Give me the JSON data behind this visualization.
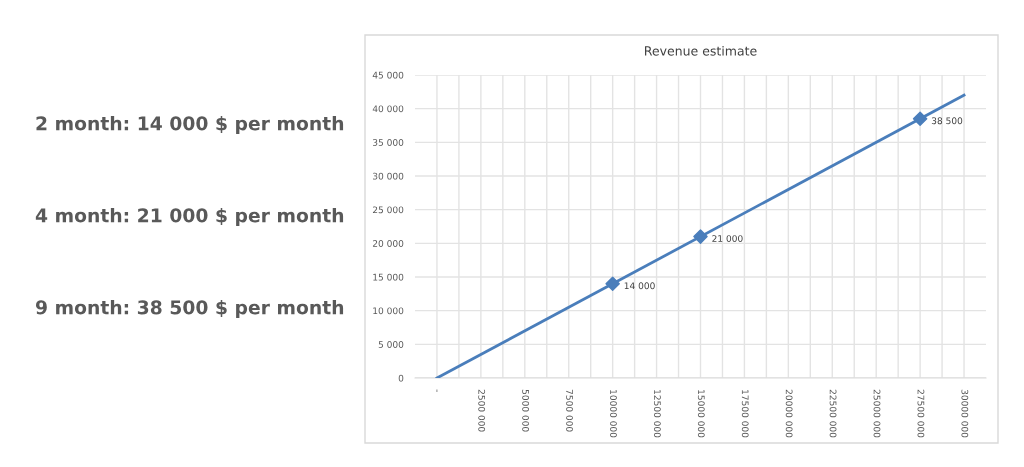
{
  "chart_data": {
    "type": "line",
    "title": "Revenue estimate",
    "annotations": [
      "2 month: 14 000 $ per month",
      "4 month: 21 000 $ per month",
      "9 month: 38 500 $ per month"
    ],
    "series": [
      {
        "color": "#4a7ebb",
        "marker": "none",
        "x": [
          0,
          30000000
        ],
        "values": [
          0,
          42000
        ]
      },
      {
        "type": "scatter",
        "color": "#4a7ebb",
        "marker": "diamond",
        "x": [
          10000000,
          15000000,
          27500000
        ],
        "values": [
          14000,
          21000,
          38500
        ],
        "value_labels": [
          "14 000",
          "21 000",
          "38 500"
        ]
      }
    ],
    "xlim": [
      -1250000,
      31250000
    ],
    "xticks": [
      {
        "value": 0,
        "label": "-"
      },
      {
        "value": 1250000,
        "label": null
      },
      {
        "value": 2500000,
        "label": "2500 000"
      },
      {
        "value": 3750000,
        "label": null
      },
      {
        "value": 5000000,
        "label": "5000 000"
      },
      {
        "value": 6250000,
        "label": null
      },
      {
        "value": 7500000,
        "label": "7500 000"
      },
      {
        "value": 8750000,
        "label": null
      },
      {
        "value": 10000000,
        "label": "10000 000"
      },
      {
        "value": 11250000,
        "label": null
      },
      {
        "value": 12500000,
        "label": "12500 000"
      },
      {
        "value": 13750000,
        "label": null
      },
      {
        "value": 15000000,
        "label": "15000 000"
      },
      {
        "value": 16250000,
        "label": null
      },
      {
        "value": 17500000,
        "label": "17500 000"
      },
      {
        "value": 18750000,
        "label": null
      },
      {
        "value": 20000000,
        "label": "20000 000"
      },
      {
        "value": 21250000,
        "label": null
      },
      {
        "value": 22500000,
        "label": "22500 000"
      },
      {
        "value": 23750000,
        "label": null
      },
      {
        "value": 25000000,
        "label": "25000 000"
      },
      {
        "value": 26250000,
        "label": null
      },
      {
        "value": 27500000,
        "label": "27500 000"
      },
      {
        "value": 28750000,
        "label": null
      },
      {
        "value": 30000000,
        "label": "30000 000"
      }
    ],
    "ylim": [
      0,
      45000
    ],
    "yticks": [
      0,
      {
        "value": 5000,
        "label": "5 000"
      },
      {
        "value": 10000,
        "label": "10 000"
      },
      {
        "value": 15000,
        "label": "15 000"
      },
      {
        "value": 20000,
        "label": "20 000"
      },
      {
        "value": 25000,
        "label": "25 000"
      },
      {
        "value": 30000,
        "label": "30 000"
      },
      {
        "value": 35000,
        "label": "35 000"
      },
      {
        "value": 40000,
        "label": "40 000"
      },
      {
        "value": 45000,
        "label": "45 000"
      }
    ],
    "grid": true,
    "legend": false
  }
}
